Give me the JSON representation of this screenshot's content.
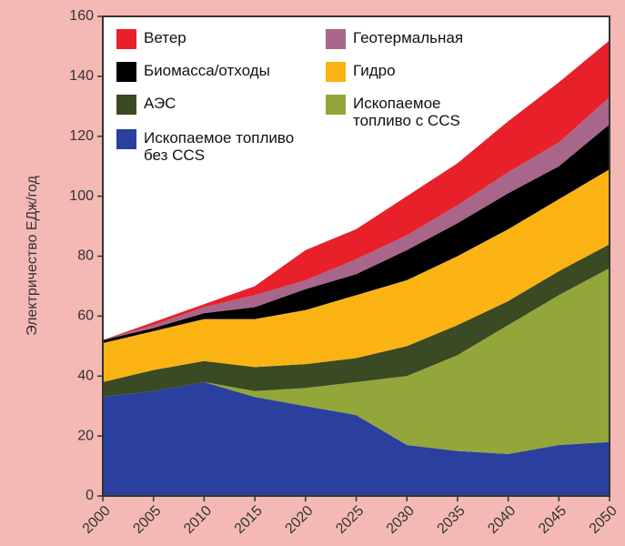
{
  "chart_data": {
    "type": "stacked_area",
    "y_label": "Электричество ЕДж/год",
    "x": [
      2000,
      2005,
      2010,
      2015,
      2020,
      2025,
      2030,
      2035,
      2040,
      2045,
      2050
    ],
    "xlim": [
      2000,
      2050
    ],
    "xticks": [
      2000,
      2005,
      2010,
      2015,
      2020,
      2025,
      2030,
      2035,
      2040,
      2045,
      2050
    ],
    "ylim": [
      0,
      160
    ],
    "yticks": [
      0,
      20,
      40,
      60,
      80,
      100,
      120,
      140,
      160
    ],
    "series": [
      {
        "name": "Ископаемое топливо без CCS",
        "color": "#2b3f9e",
        "values": [
          33,
          35,
          38,
          33,
          30,
          27,
          17,
          15,
          14,
          17,
          18
        ]
      },
      {
        "name": "Ископаемое топливо с CCS",
        "color": "#93a63a",
        "values": [
          0,
          0,
          0,
          2,
          6,
          11,
          23,
          32,
          43,
          50,
          58
        ]
      },
      {
        "name": "АЭС",
        "color": "#3a4a22",
        "values": [
          5,
          7,
          7,
          8,
          8,
          8,
          10,
          10,
          8,
          8,
          8
        ]
      },
      {
        "name": "Гидро",
        "color": "#fbb314",
        "values": [
          13,
          13,
          14,
          16,
          18,
          21,
          22,
          23,
          24,
          24,
          25
        ]
      },
      {
        "name": "Биомасса/отходы",
        "color": "#000000",
        "values": [
          1,
          1,
          2,
          4,
          7,
          7,
          10,
          11,
          12,
          11,
          15
        ]
      },
      {
        "name": "Геотермальная",
        "color": "#a8668a",
        "values": [
          0,
          1,
          2,
          4,
          3,
          5,
          5,
          6,
          7,
          8,
          9
        ]
      },
      {
        "name": "Ветер",
        "color": "#e8202a",
        "values": [
          0,
          1,
          1,
          3,
          10,
          10,
          13,
          14,
          17,
          20,
          19
        ]
      }
    ]
  }
}
